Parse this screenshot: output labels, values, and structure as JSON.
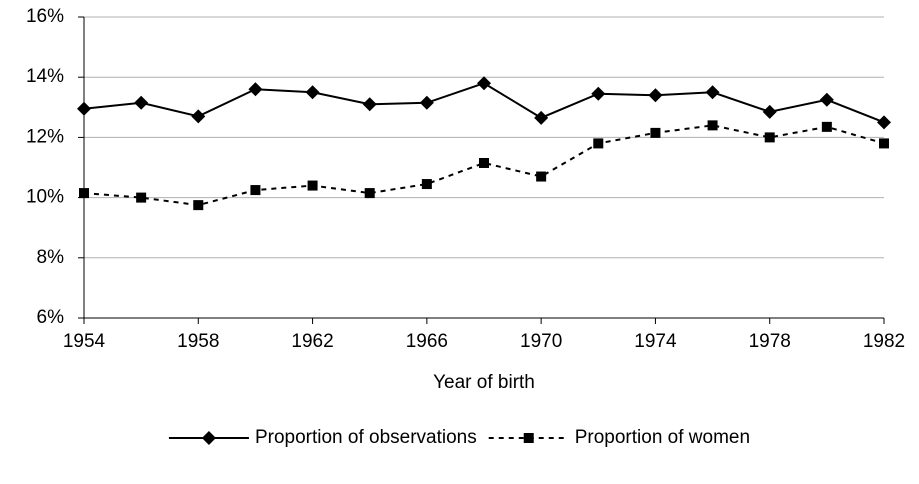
{
  "chart_data": {
    "type": "line",
    "xlabel": "Year of birth",
    "x": [
      1954,
      1956,
      1958,
      1960,
      1962,
      1964,
      1966,
      1968,
      1970,
      1972,
      1974,
      1976,
      1978,
      1980,
      1982
    ],
    "series": [
      {
        "name": "Proportion of observations",
        "color": "#000000",
        "marker": "diamond",
        "dashed": false,
        "values": [
          12.95,
          13.15,
          12.7,
          13.6,
          13.5,
          13.1,
          13.15,
          13.8,
          12.65,
          13.45,
          13.4,
          13.5,
          12.85,
          13.25,
          12.5
        ]
      },
      {
        "name": "Proportion of women",
        "color": "#000000",
        "marker": "square",
        "dashed": true,
        "values": [
          10.15,
          10.0,
          9.75,
          10.25,
          10.4,
          10.15,
          10.45,
          11.15,
          10.7,
          11.8,
          12.15,
          12.4,
          12.0,
          12.35,
          11.8
        ]
      }
    ],
    "xlim": [
      1954,
      1982
    ],
    "xticks": [
      1954,
      1958,
      1962,
      1966,
      1970,
      1974,
      1978,
      1982
    ],
    "ylim": [
      6,
      16
    ],
    "yticks": [
      {
        "value": 6,
        "label": "6%"
      },
      {
        "value": 8,
        "label": "8%"
      },
      {
        "value": 10,
        "label": "10%"
      },
      {
        "value": 12,
        "label": "12%"
      },
      {
        "value": 14,
        "label": "14%"
      },
      {
        "value": 16,
        "label": "16%"
      }
    ],
    "grid": true,
    "legend": "bottom"
  }
}
